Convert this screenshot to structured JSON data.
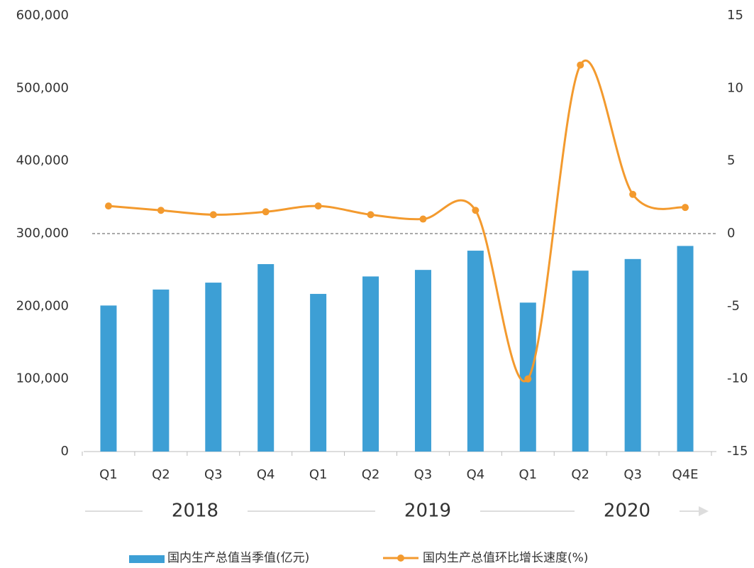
{
  "chart_data": {
    "type": "bar_line",
    "categories": [
      "Q1",
      "Q2",
      "Q3",
      "Q4",
      "Q1",
      "Q2",
      "Q3",
      "Q4",
      "Q1",
      "Q2",
      "Q3",
      "Q4E"
    ],
    "years": [
      "2018",
      "2019",
      "2020"
    ],
    "series": [
      {
        "name": "国内生产总值当季值(亿元)",
        "type": "bar",
        "color": "#3d9fd5",
        "values": [
          201000,
          223000,
          232500,
          258000,
          217000,
          241000,
          250000,
          276500,
          205000,
          249000,
          265000,
          283000
        ]
      },
      {
        "name": "国内生产总值环比增长速度(%)",
        "type": "line",
        "axis": "y2",
        "color": "#f39a2e",
        "values": [
          1.9,
          1.6,
          1.3,
          1.5,
          1.9,
          1.3,
          1.0,
          1.6,
          -10.0,
          11.6,
          2.7,
          1.8
        ]
      }
    ],
    "ylim": [
      0,
      600000
    ],
    "yticks": [
      0,
      {
        "value": 100000,
        "label": "100,000"
      },
      {
        "value": 200000,
        "label": "200,000"
      },
      {
        "value": 300000,
        "label": "300,000"
      },
      {
        "value": 400000,
        "label": "400,000"
      },
      {
        "value": 500000,
        "label": "500,000"
      },
      {
        "value": 600000,
        "label": "600,000"
      }
    ],
    "y2lim": [
      -15,
      15
    ],
    "y2ticks": [
      -15,
      -10,
      -5,
      0,
      5,
      10,
      15
    ],
    "legend": "bottom"
  }
}
